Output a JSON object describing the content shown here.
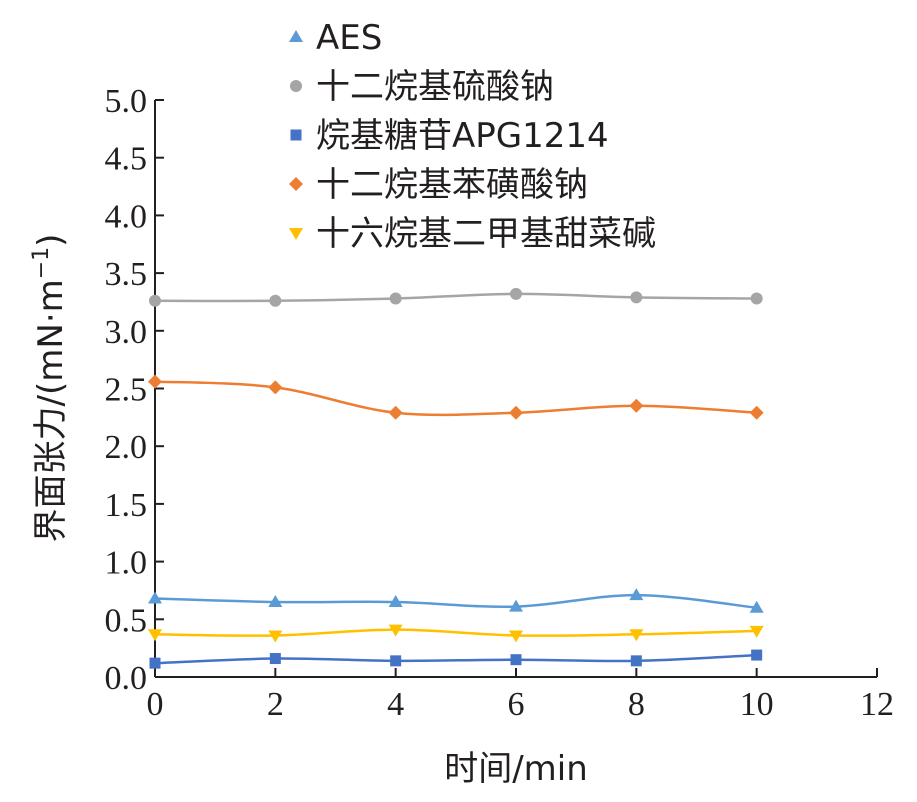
{
  "chart_data": {
    "type": "line",
    "xlabel": "时间/min",
    "ylabel": "界面张力/(mN·m",
    "ylabel_exp": "−1",
    "ylabel_close": ")",
    "xlim": [
      0,
      12
    ],
    "ylim": [
      0,
      5
    ],
    "x_ticks": [
      "0",
      "2",
      "4",
      "6",
      "8",
      "10",
      "12"
    ],
    "y_ticks": [
      "0.0",
      "0.5",
      "1.0",
      "1.5",
      "2.0",
      "2.5",
      "3.0",
      "3.5",
      "4.0",
      "4.5",
      "5.0"
    ],
    "x": [
      0,
      2,
      4,
      6,
      8,
      10
    ],
    "grid": false,
    "legend_position": "top-right",
    "series": [
      {
        "name": "AES",
        "marker": "triangle-up",
        "color": "#5b9bd5",
        "values": [
          0.68,
          0.65,
          0.65,
          0.61,
          0.71,
          0.6
        ]
      },
      {
        "name": "十二烷基硫酸钠",
        "marker": "circle",
        "color": "#a5a5a5",
        "values": [
          3.26,
          3.26,
          3.28,
          3.32,
          3.29,
          3.28
        ]
      },
      {
        "name": "烷基糖苷APG1214",
        "marker": "square",
        "color": "#4472c4",
        "values": [
          0.12,
          0.16,
          0.14,
          0.15,
          0.14,
          0.19
        ]
      },
      {
        "name": "十二烷基苯磺酸钠",
        "marker": "diamond",
        "color": "#ed7d31",
        "values": [
          2.56,
          2.51,
          2.29,
          2.29,
          2.35,
          2.29
        ]
      },
      {
        "name": "十六烷基二甲基甜菜碱",
        "marker": "triangle-down",
        "color": "#ffc000",
        "values": [
          0.37,
          0.36,
          0.41,
          0.36,
          0.37,
          0.4
        ]
      }
    ]
  }
}
